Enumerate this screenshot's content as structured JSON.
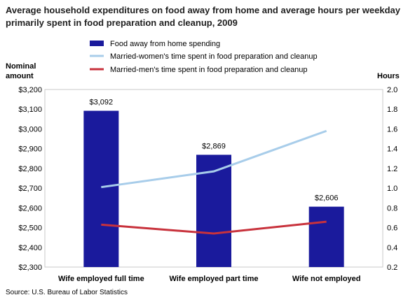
{
  "chart_data": {
    "type": "bar",
    "title": "Average household expenditures on food away from home and average hours per weekday  primarily spent in food preparation and cleanup, 2009",
    "categories": [
      "Wife employed full time",
      "Wife employed part time",
      "Wife not employed"
    ],
    "left_axis": {
      "label_line1": "Nominal",
      "label_line2": "amount",
      "ylim": [
        2300,
        3200
      ],
      "ticks": [
        "$2,300",
        "$2,400",
        "$2,500",
        "$2,600",
        "$2,700",
        "$2,800",
        "$2,900",
        "$3,000",
        "$3,100",
        "$3,200"
      ]
    },
    "right_axis": {
      "label": "Hours",
      "ylim": [
        0.2,
        2.0
      ],
      "ticks": [
        "0.2",
        "0.4",
        "0.6",
        "0.8",
        "1.0",
        "1.2",
        "1.4",
        "1.6",
        "1.8",
        "2.0"
      ]
    },
    "series": [
      {
        "name": "Food away from home spending",
        "kind": "bar",
        "axis": "left",
        "values": [
          3092,
          2869,
          2606
        ],
        "data_labels": [
          "$3,092",
          "$2,869",
          "$2,606"
        ],
        "color": "#1a1a9c"
      },
      {
        "name": "Married-women's time spent in food preparation and cleanup",
        "kind": "line",
        "axis": "right",
        "values": [
          1.01,
          1.17,
          1.58
        ],
        "color": "#a8cdea"
      },
      {
        "name": "Married-men's time spent in food preparation and cleanup",
        "kind": "line",
        "axis": "right",
        "values": [
          0.63,
          0.54,
          0.66
        ],
        "color": "#c8323c"
      }
    ],
    "grid": false,
    "legend_position": "top-center"
  },
  "source": "Source: U.S. Bureau of Labor Statistics"
}
